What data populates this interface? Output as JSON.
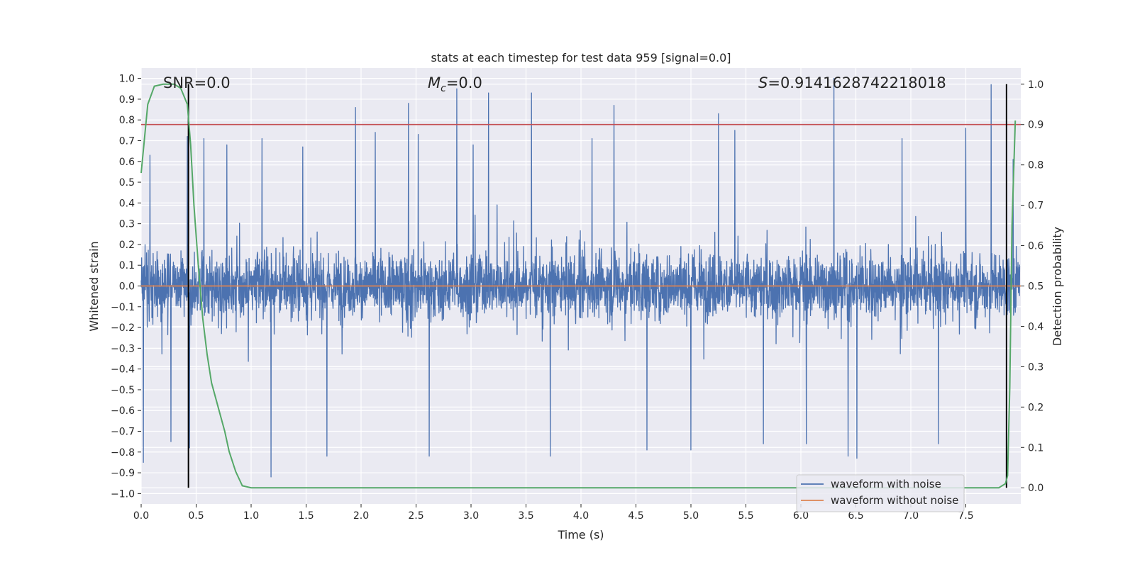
{
  "chart_data": {
    "type": "line",
    "title": "stats at each timestep for test data 959 [signal=0.0]",
    "xlabel": "Time (s)",
    "ylabel": "Whitened strain",
    "y2label": "Detection probability",
    "xlim": [
      0.0,
      8.0
    ],
    "ylim": [
      -1.05,
      1.05
    ],
    "y2lim": [
      -0.04,
      1.04
    ],
    "x_ticks": [
      "0.0",
      "0.5",
      "1.0",
      "1.5",
      "2.0",
      "2.5",
      "3.0",
      "3.5",
      "4.0",
      "4.5",
      "5.0",
      "5.5",
      "6.0",
      "6.5",
      "7.0",
      "7.5"
    ],
    "y_ticks": [
      "1.0",
      "0.9",
      "0.8",
      "0.7",
      "0.6",
      "0.5",
      "0.4",
      "0.3",
      "0.2",
      "0.1",
      "0.0",
      "-0.1",
      "-0.2",
      "-0.3",
      "-0.4",
      "-0.5",
      "-0.6",
      "-0.7",
      "-0.8",
      "-0.9",
      "-1.0"
    ],
    "y2_ticks": [
      "1.0",
      "0.9",
      "0.8",
      "0.7",
      "0.6",
      "0.5",
      "0.4",
      "0.3",
      "0.2",
      "0.1",
      "0.0"
    ],
    "grid": true,
    "legend_position": "lower-right",
    "annotations": {
      "snr": "SNR=0.0",
      "mc_symbol": "M",
      "mc_subscript": "c",
      "mc_value": "=0.0",
      "s_symbol": "S",
      "s_value": "=0.9141628742218018"
    },
    "series": [
      {
        "name": "waveform with noise",
        "color": "#4c72b0",
        "description": "noise band, peaks up to ~1.0, down to ~-0.92",
        "peaks": [
          [
            0.02,
            -0.85
          ],
          [
            0.08,
            0.63
          ],
          [
            0.27,
            -0.75
          ],
          [
            0.42,
            0.72
          ],
          [
            0.44,
            -0.78
          ],
          [
            0.57,
            0.71
          ],
          [
            0.78,
            0.68
          ],
          [
            1.1,
            0.71
          ],
          [
            1.18,
            -0.92
          ],
          [
            1.47,
            0.67
          ],
          [
            1.69,
            -0.82
          ],
          [
            1.95,
            0.86
          ],
          [
            2.13,
            0.74
          ],
          [
            2.43,
            0.88
          ],
          [
            2.52,
            0.73
          ],
          [
            2.62,
            -0.82
          ],
          [
            2.87,
            0.95
          ],
          [
            3.02,
            0.68
          ],
          [
            3.16,
            0.93
          ],
          [
            3.55,
            0.93
          ],
          [
            3.72,
            -0.82
          ],
          [
            4.1,
            0.71
          ],
          [
            4.3,
            0.87
          ],
          [
            4.6,
            -0.79
          ],
          [
            5.0,
            -0.79
          ],
          [
            5.25,
            0.83
          ],
          [
            5.4,
            0.75
          ],
          [
            5.66,
            -0.76
          ],
          [
            6.05,
            -0.76
          ],
          [
            6.3,
            1.0
          ],
          [
            6.43,
            -0.82
          ],
          [
            6.51,
            -0.83
          ],
          [
            6.92,
            0.71
          ],
          [
            7.25,
            -0.76
          ],
          [
            7.5,
            0.76
          ],
          [
            7.73,
            0.97
          ],
          [
            7.87,
            0.56
          ],
          [
            7.93,
            0.61
          ]
        ]
      },
      {
        "name": "waveform without noise",
        "color": "#dd8452",
        "x": [
          0.0,
          8.0
        ],
        "y": [
          0.0,
          0.0
        ]
      },
      {
        "name": "detection probability",
        "axis": "right",
        "color": "#55a868",
        "x": [
          0.0,
          0.06,
          0.12,
          0.2,
          0.3,
          0.36,
          0.42,
          0.45,
          0.48,
          0.52,
          0.56,
          0.6,
          0.64,
          0.68,
          0.72,
          0.76,
          0.8,
          0.86,
          0.92,
          1.0,
          1.5,
          2.0,
          3.0,
          4.0,
          5.0,
          6.0,
          7.0,
          7.5,
          7.8,
          7.86,
          7.88,
          7.9,
          7.92,
          7.95
        ],
        "y": [
          0.78,
          0.95,
          0.995,
          1.0,
          1.0,
          0.99,
          0.95,
          0.85,
          0.7,
          0.55,
          0.42,
          0.33,
          0.26,
          0.22,
          0.18,
          0.14,
          0.09,
          0.04,
          0.005,
          0.0,
          0.0,
          0.0,
          0.0,
          0.0,
          0.0,
          0.0,
          0.0,
          0.0,
          0.0,
          0.01,
          0.03,
          0.25,
          0.65,
          0.91
        ]
      }
    ],
    "hlines": [
      {
        "axis": "right",
        "y": 0.9,
        "color": "#c44e52"
      }
    ],
    "vlines": [
      {
        "x": 0.43,
        "y2_range": [
          0.0,
          1.0
        ],
        "color": "#000000"
      },
      {
        "x": 7.87,
        "y2_range": [
          0.0,
          1.0
        ],
        "color": "#000000"
      }
    ]
  }
}
